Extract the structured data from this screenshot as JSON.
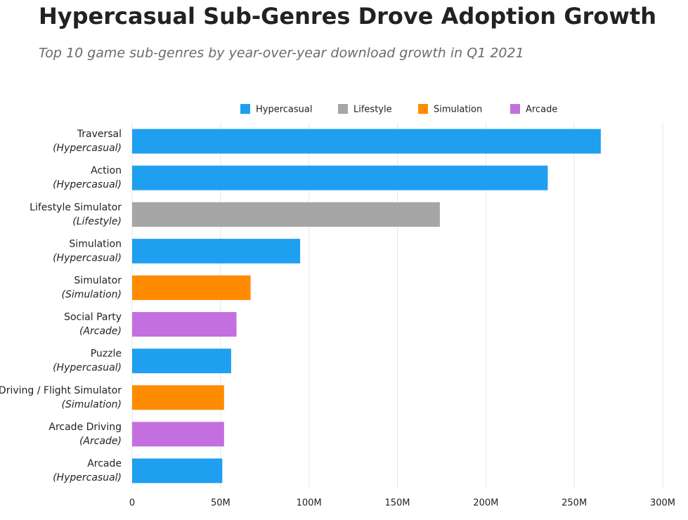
{
  "chart_data": {
    "type": "bar",
    "orientation": "horizontal",
    "title": "Hypercasual Sub-Genres Drove Adoption Growth",
    "subtitle": "Top 10 game sub-genres by year-over-year download growth in Q1 2021",
    "categories": [
      "Traversal",
      "Action",
      "Lifestyle Simulator",
      "Simulation",
      "Simulator",
      "Social Party",
      "Puzzle",
      "Driving / Flight Simulator",
      "Arcade Driving",
      "Arcade"
    ],
    "category_notes": [
      "(Hypercasual)",
      "(Hypercasual)",
      "(Lifestyle)",
      "(Hypercasual)",
      "(Simulation)",
      "(Arcade)",
      "(Hypercasual)",
      "(Simulation)",
      "(Arcade)",
      "(Hypercasual)"
    ],
    "series": [
      {
        "name": "Hypercasual",
        "color": "#1f9ff0",
        "values": [
          265,
          235,
          null,
          95,
          null,
          null,
          56,
          null,
          null,
          51
        ]
      },
      {
        "name": "Lifestyle",
        "color": "#a6a6a6",
        "values": [
          null,
          null,
          174,
          null,
          null,
          null,
          null,
          null,
          null,
          null
        ]
      },
      {
        "name": "Simulation",
        "color": "#ff8c00",
        "values": [
          null,
          null,
          null,
          null,
          67,
          null,
          null,
          52,
          null,
          null
        ]
      },
      {
        "name": "Arcade",
        "color": "#c46fe0",
        "values": [
          null,
          null,
          null,
          null,
          null,
          59,
          null,
          null,
          52,
          null
        ]
      }
    ],
    "xlim": [
      0,
      300
    ],
    "xticks": [
      0,
      {
        "value": 50,
        "label": "50M"
      },
      {
        "value": 100,
        "label": "100M"
      },
      {
        "value": 150,
        "label": "150M"
      },
      {
        "value": 200,
        "label": "200M"
      },
      {
        "value": 250,
        "label": "250M"
      },
      {
        "value": 300,
        "label": "300M"
      }
    ],
    "grid": true,
    "legend": "top"
  }
}
